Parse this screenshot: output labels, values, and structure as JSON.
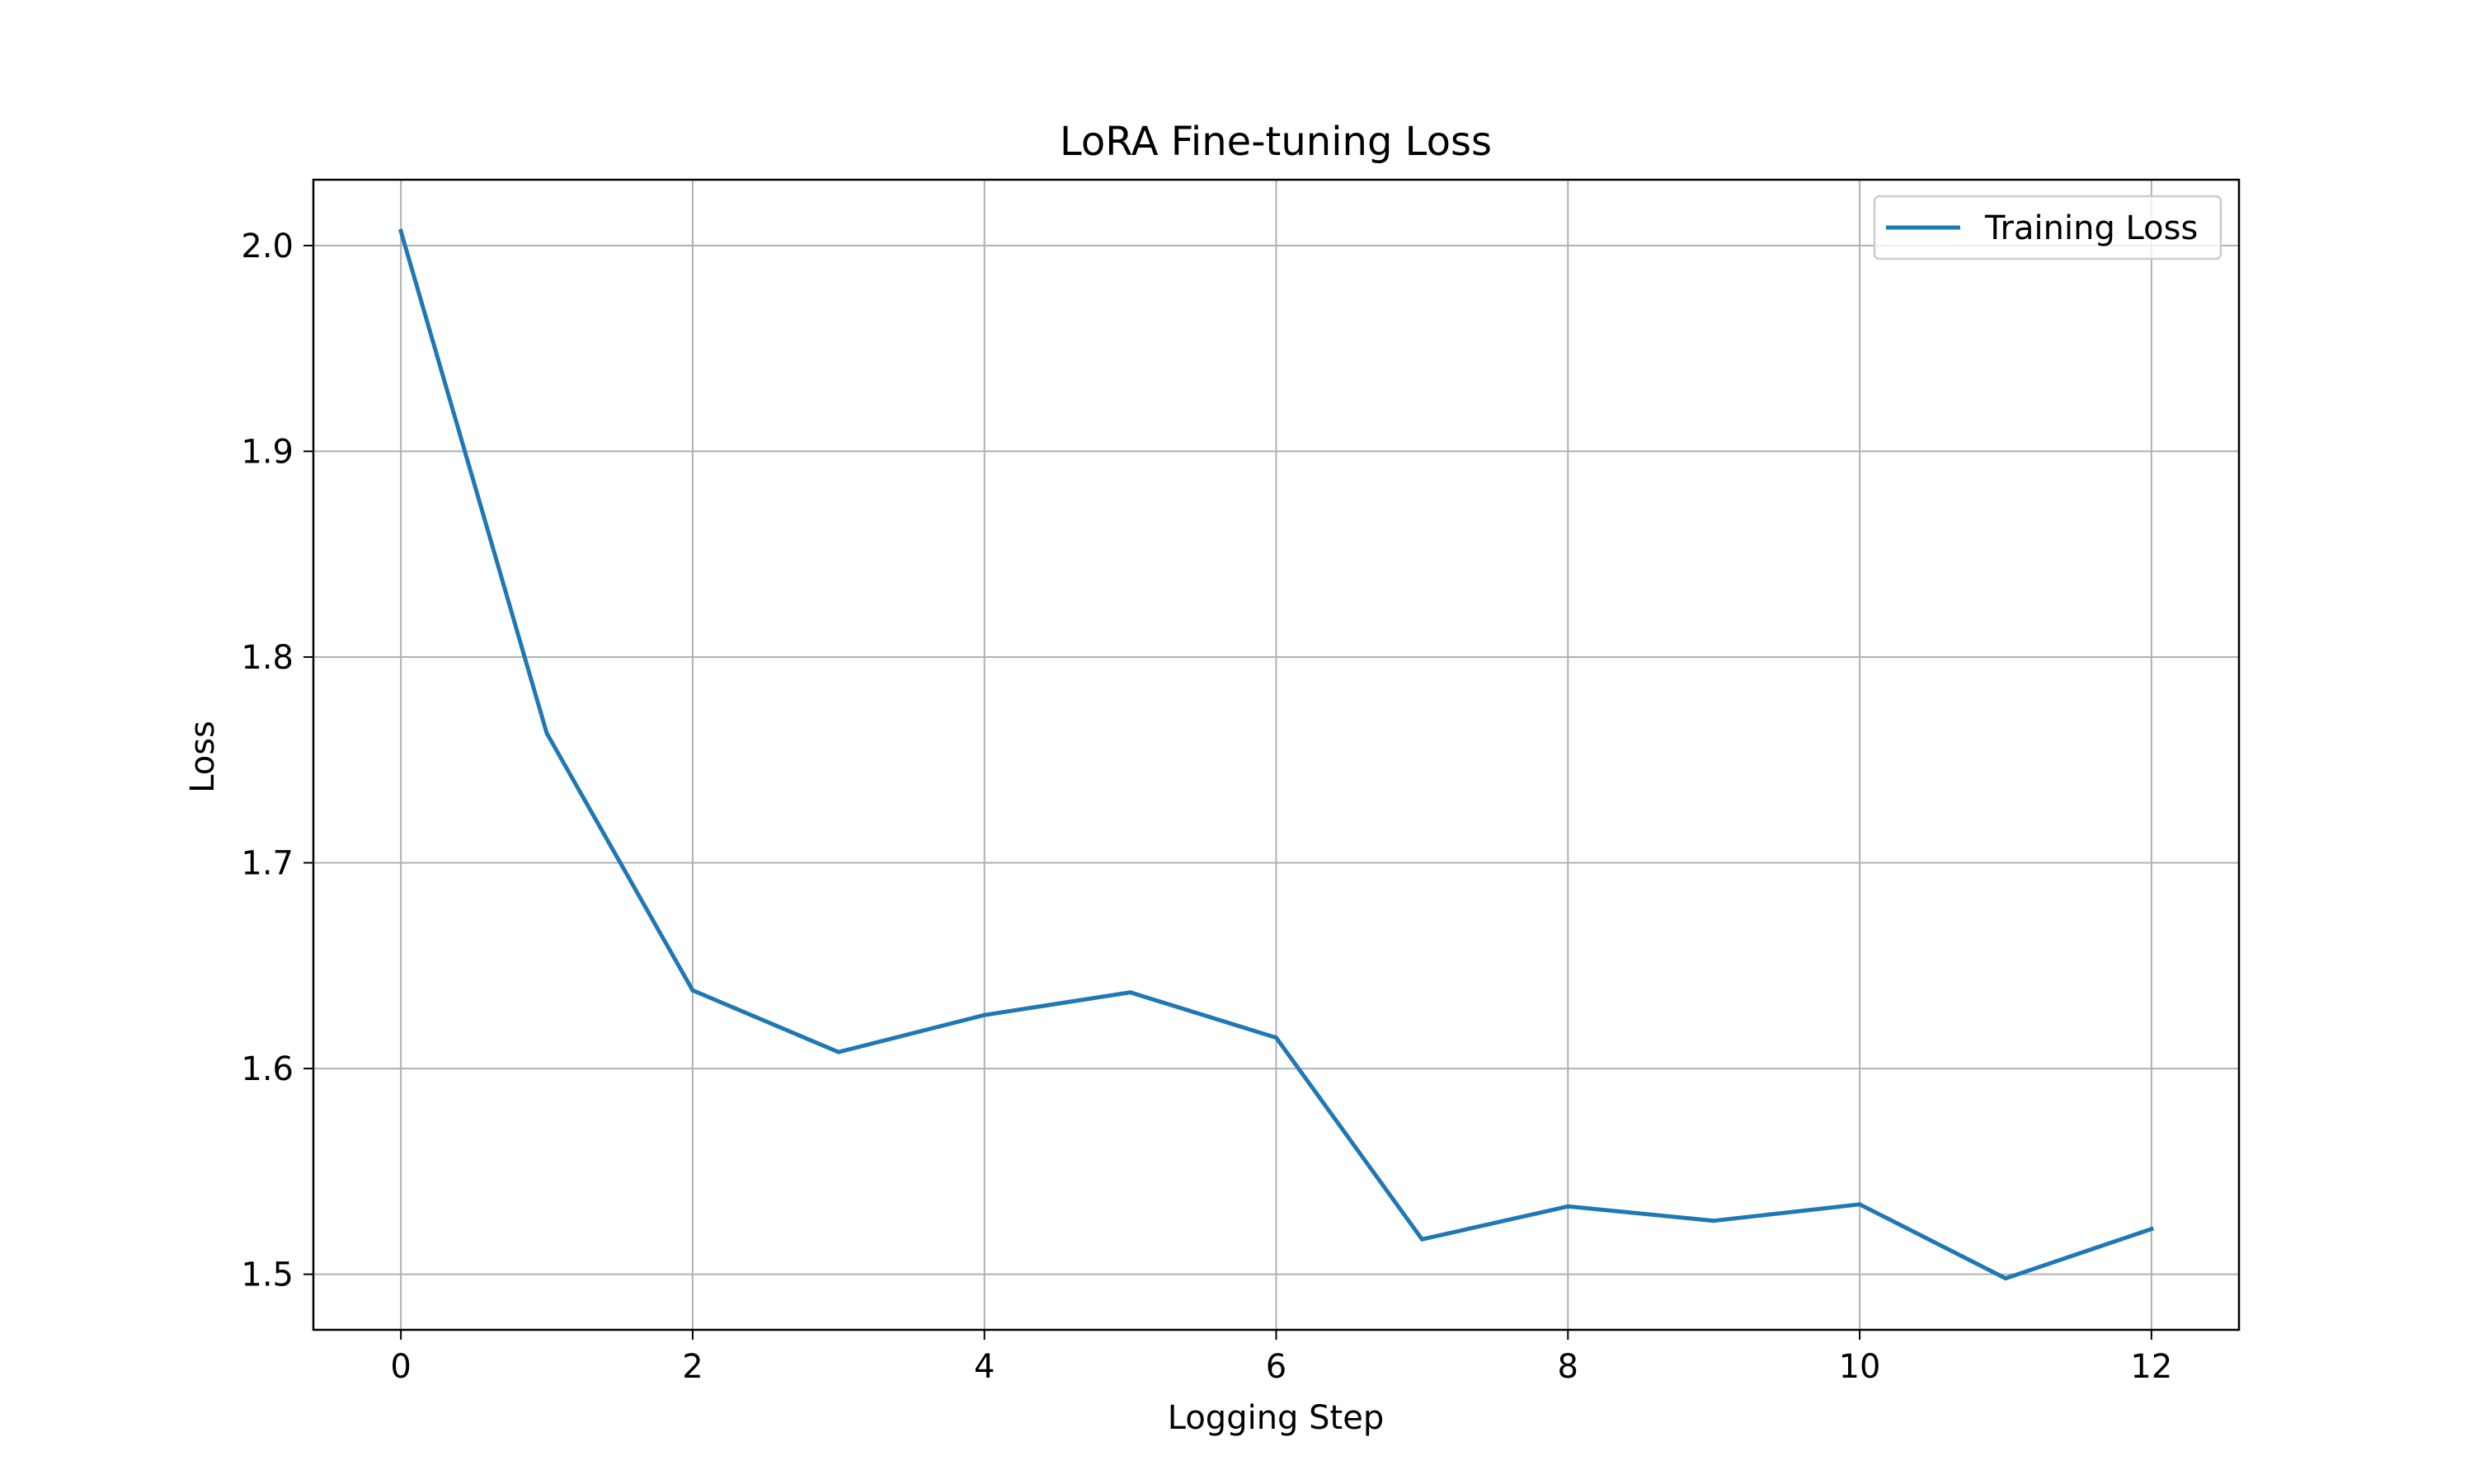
{
  "chart_data": {
    "type": "line",
    "title": "LoRA Fine-tuning Loss",
    "xlabel": "Logging Step",
    "ylabel": "Loss",
    "xlim": [
      -0.6,
      12.6
    ],
    "ylim": [
      1.473,
      2.032
    ],
    "xticks": [
      0,
      2,
      4,
      6,
      8,
      10,
      12
    ],
    "yticks": [
      1.5,
      1.6,
      1.7,
      1.8,
      1.9,
      2.0
    ],
    "xtick_labels": [
      "0",
      "2",
      "4",
      "6",
      "8",
      "10",
      "12"
    ],
    "ytick_labels": [
      "1.5",
      "1.6",
      "1.7",
      "1.8",
      "1.9",
      "2.0"
    ],
    "grid": true,
    "legend_position": "top-right",
    "series": [
      {
        "name": "Training Loss",
        "color": "#1f77b4",
        "x": [
          0,
          1,
          2,
          3,
          4,
          5,
          6,
          7,
          8,
          9,
          10,
          11,
          12
        ],
        "y": [
          2.007,
          1.763,
          1.638,
          1.608,
          1.626,
          1.637,
          1.615,
          1.517,
          1.533,
          1.526,
          1.534,
          1.498,
          1.522
        ]
      }
    ]
  }
}
